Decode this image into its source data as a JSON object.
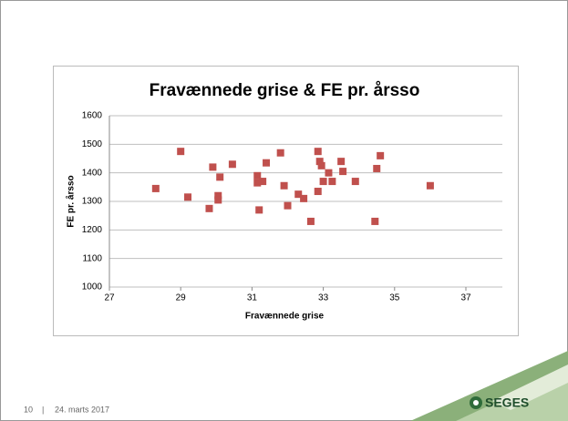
{
  "chart_data": {
    "type": "scatter",
    "title": "Fravænnede grise & FE pr. årsso",
    "x_label": "Fravænnede grise",
    "y_label": "FE pr. årsso",
    "color": "#c0504d",
    "grid": true,
    "xlim": [
      27,
      37
    ],
    "xticks": [
      27,
      29,
      31,
      33,
      35,
      37
    ],
    "ylim": [
      1000,
      1600
    ],
    "yticks": [
      1000,
      1100,
      1200,
      1300,
      1400,
      1500,
      1600
    ],
    "x": [
      28.3,
      29,
      29.2,
      29.8,
      29.9,
      30.05,
      30.05,
      30.1,
      30.45,
      31.15,
      31.15,
      31.2,
      31.3,
      31.4,
      31.8,
      31.9,
      32.0,
      32.3,
      32.45,
      32.65,
      32.85,
      32.9,
      32.85,
      32.95,
      33.0,
      33.15,
      33.25,
      33.5,
      33.55,
      33.9,
      34.45,
      34.5,
      34.6,
      36.0
    ],
    "values": [
      1345,
      1475,
      1315,
      1275,
      1420,
      1320,
      1305,
      1385,
      1430,
      1390,
      1365,
      1270,
      1370,
      1435,
      1470,
      1355,
      1285,
      1325,
      1310,
      1230,
      1475,
      1440,
      1335,
      1425,
      1370,
      1400,
      1370,
      1440,
      1405,
      1370,
      1230,
      1415,
      1460,
      1355
    ]
  },
  "footer": {
    "page": "10",
    "separator": "|",
    "date": "24. marts 2017"
  },
  "logo": "SEGES"
}
